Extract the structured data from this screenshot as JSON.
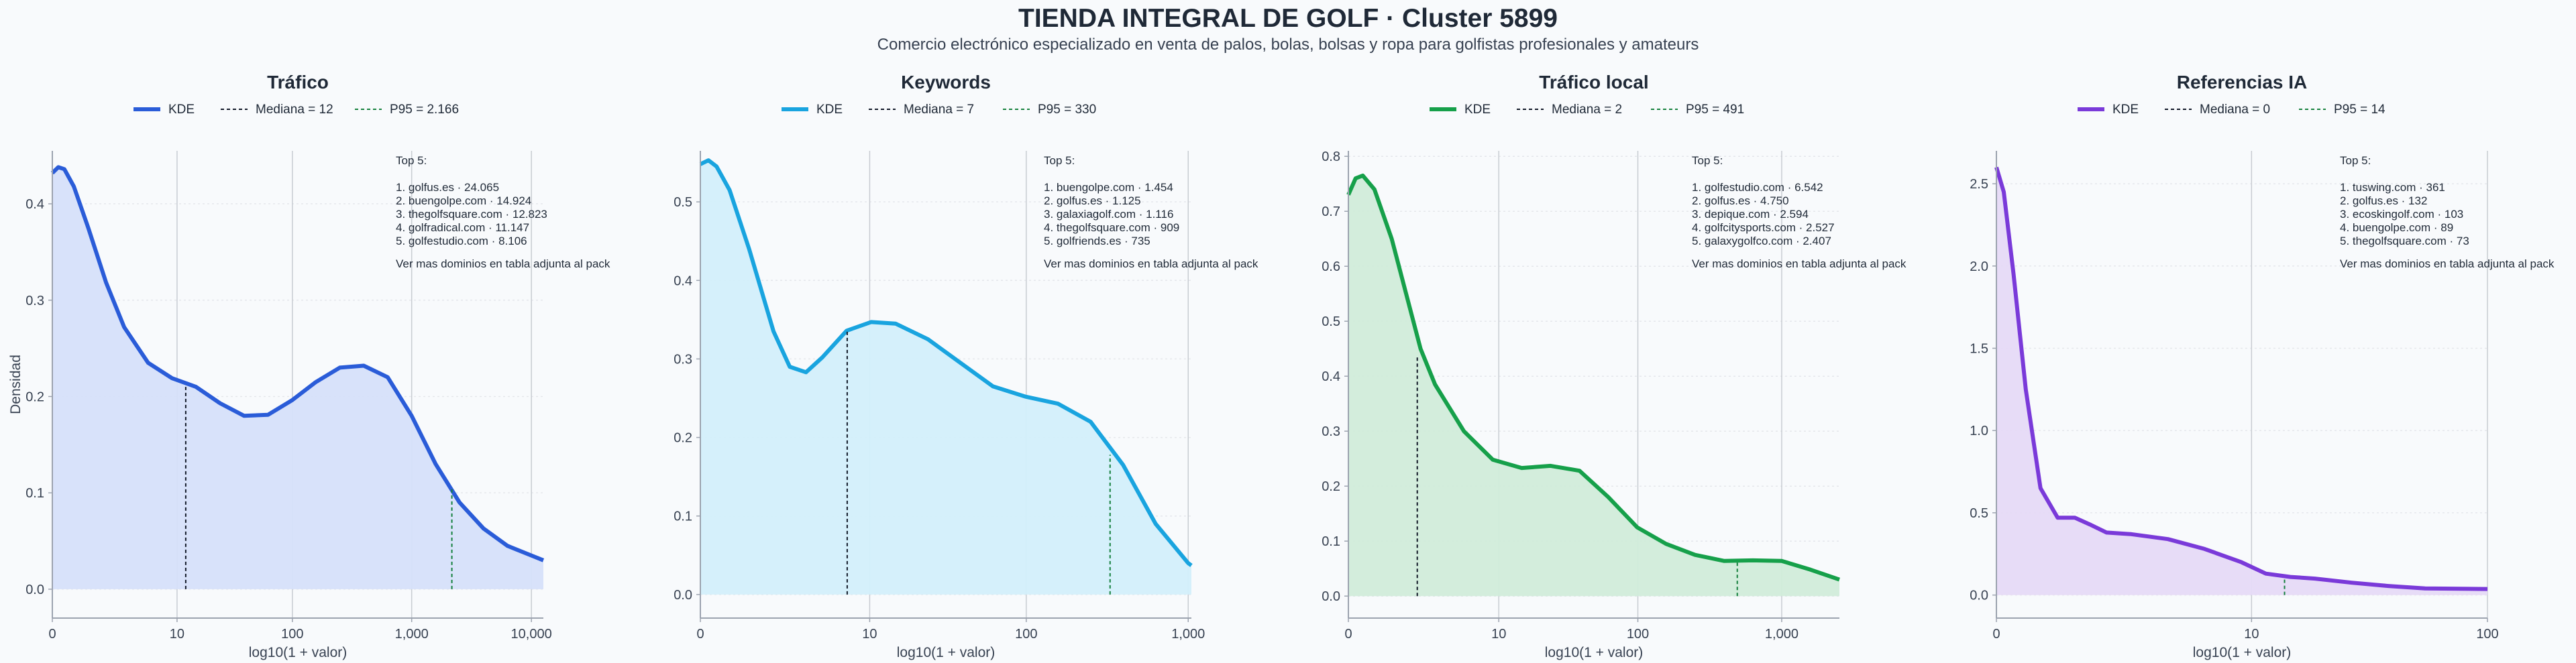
{
  "title": "TIENDA INTEGRAL DE GOLF · Cluster 5899",
  "subtitle": "Comercio electrónico especializado en venta de palos, bolas, bolsas y ropa para golfistas profesionales y amateurs",
  "chart_data": [
    {
      "type": "area",
      "title": "Tráfico",
      "xlabel": "log10(1 + valor)",
      "ylabel": "Densidad",
      "color": "#2a5cd8",
      "fill": "#d6e0fa",
      "x_ticks": [
        "0",
        "10",
        "100",
        "1,000",
        "10,000"
      ],
      "x_tick_pos": [
        0,
        1.0414,
        2.0043,
        3.0004,
        4.0
      ],
      "xlim": [
        0,
        4.1
      ],
      "y_ticks": [
        "0.0",
        "0.1",
        "0.2",
        "0.3",
        "0.4"
      ],
      "ylim": [
        -0.03,
        0.455
      ],
      "x": [
        0,
        0.05,
        0.1,
        0.18,
        0.3,
        0.45,
        0.6,
        0.8,
        1.0,
        1.2,
        1.4,
        1.6,
        1.8,
        2.0,
        2.2,
        2.4,
        2.6,
        2.8,
        3.0,
        3.2,
        3.4,
        3.6,
        3.8,
        4.0,
        4.1
      ],
      "y": [
        0.432,
        0.438,
        0.436,
        0.418,
        0.375,
        0.318,
        0.272,
        0.235,
        0.219,
        0.21,
        0.193,
        0.18,
        0.181,
        0.196,
        0.215,
        0.23,
        0.232,
        0.22,
        0.18,
        0.13,
        0.09,
        0.063,
        0.045,
        0.035,
        0.03
      ],
      "legend": [
        "KDE",
        "Mediana = 12",
        "P95 = 2.166"
      ],
      "median": 1.1139,
      "median_y": 0.21,
      "p95": 3.3359,
      "p95_y": 0.105,
      "top5_title": "Top 5:",
      "top5": [
        "1. golfus.es · 24.065",
        "2. buengolpe.com · 14.924",
        "3. thegolfsquare.com · 12.823",
        "4. golfradical.com · 11.147",
        "5. golfestudio.com · 8.106"
      ],
      "top5_note": "Ver mas dominios en tabla adjunta al pack"
    },
    {
      "type": "area",
      "title": "Keywords",
      "xlabel": "log10(1 + valor)",
      "ylabel": "",
      "color": "#19a4df",
      "fill": "#d3effb",
      "x_ticks": [
        "0",
        "10",
        "100",
        "1,000"
      ],
      "x_tick_pos": [
        0,
        1.0414,
        2.0043,
        3.0004
      ],
      "xlim": [
        0,
        3.02
      ],
      "y_ticks": [
        "0.0",
        "0.1",
        "0.2",
        "0.3",
        "0.4",
        "0.5"
      ],
      "ylim": [
        -0.03,
        0.565
      ],
      "x": [
        0,
        0.05,
        0.1,
        0.18,
        0.3,
        0.45,
        0.55,
        0.65,
        0.75,
        0.9,
        1.05,
        1.2,
        1.4,
        1.6,
        1.8,
        2.0,
        2.2,
        2.4,
        2.6,
        2.8,
        3.0,
        3.02
      ],
      "y": [
        0.548,
        0.553,
        0.545,
        0.515,
        0.44,
        0.335,
        0.29,
        0.283,
        0.302,
        0.336,
        0.347,
        0.345,
        0.325,
        0.295,
        0.265,
        0.252,
        0.243,
        0.22,
        0.165,
        0.09,
        0.04,
        0.037
      ],
      "legend": [
        "KDE",
        "Mediana = 7",
        "P95 = 330"
      ],
      "median": 0.9031,
      "median_y": 0.336,
      "p95": 2.5198,
      "p95_y": 0.178,
      "top5_title": "Top 5:",
      "top5": [
        "1. buengolpe.com · 1.454",
        "2. golfus.es · 1.125",
        "3. galaxiagolf.com · 1.116",
        "4. thegolfsquare.com · 909",
        "5. golfriends.es · 735"
      ],
      "top5_note": "Ver mas dominios en tabla adjunta al pack"
    },
    {
      "type": "area",
      "title": "Tráfico local",
      "xlabel": "log10(1 + valor)",
      "ylabel": "",
      "color": "#16a04a",
      "fill": "#d1ecda",
      "x_ticks": [
        "0",
        "10",
        "100",
        "1,000"
      ],
      "x_tick_pos": [
        0,
        1.0414,
        2.0043,
        3.0004
      ],
      "xlim": [
        0,
        3.4
      ],
      "y_ticks": [
        "0.0",
        "0.1",
        "0.2",
        "0.3",
        "0.4",
        "0.5",
        "0.6",
        "0.7",
        "0.8"
      ],
      "ylim": [
        -0.04,
        0.81
      ],
      "x": [
        0,
        0.05,
        0.1,
        0.18,
        0.3,
        0.4,
        0.5,
        0.6,
        0.8,
        1.0,
        1.2,
        1.4,
        1.6,
        1.8,
        2.0,
        2.2,
        2.4,
        2.6,
        2.8,
        3.0,
        3.2,
        3.4
      ],
      "y": [
        0.73,
        0.76,
        0.765,
        0.74,
        0.65,
        0.55,
        0.45,
        0.385,
        0.3,
        0.248,
        0.233,
        0.237,
        0.228,
        0.18,
        0.125,
        0.095,
        0.075,
        0.064,
        0.065,
        0.064,
        0.048,
        0.03
      ],
      "legend": [
        "KDE",
        "Mediana = 2",
        "P95 = 491"
      ],
      "median": 0.4771,
      "median_y": 0.438,
      "p95": 2.6928,
      "p95_y": 0.064,
      "top5_title": "Top 5:",
      "top5": [
        "1. golfestudio.com · 6.542",
        "2. golfus.es · 4.750",
        "3. depique.com · 2.594",
        "4. golfcitysports.com · 2.527",
        "5. galaxygolfco.com · 2.407"
      ],
      "top5_note": "Ver mas dominios en tabla adjunta al pack"
    },
    {
      "type": "area",
      "title": "Referencias IA",
      "xlabel": "log10(1 + valor)",
      "ylabel": "",
      "color": "#7a3ad9",
      "fill": "#e6daf7",
      "x_ticks": [
        "0",
        "10",
        "100"
      ],
      "x_tick_pos": [
        0,
        1.0414,
        2.0043
      ],
      "xlim": [
        0,
        2.0043
      ],
      "y_ticks": [
        "0.0",
        "0.5",
        "1.0",
        "1.5",
        "2.0",
        "2.5"
      ],
      "ylim": [
        -0.14,
        2.7
      ],
      "x": [
        0,
        0.03,
        0.07,
        0.12,
        0.18,
        0.25,
        0.32,
        0.38,
        0.45,
        0.55,
        0.7,
        0.85,
        1.0,
        1.1,
        1.2,
        1.3,
        1.45,
        1.6,
        1.75,
        1.9,
        2.0043
      ],
      "y": [
        2.6,
        2.45,
        1.95,
        1.25,
        0.65,
        0.47,
        0.47,
        0.43,
        0.38,
        0.37,
        0.34,
        0.28,
        0.2,
        0.13,
        0.11,
        0.1,
        0.075,
        0.055,
        0.04,
        0.038,
        0.037
      ],
      "legend": [
        "KDE",
        "Mediana = 0",
        "P95 = 14"
      ],
      "median": 0,
      "median_y": 2.6,
      "p95": 1.1761,
      "p95_y": 0.105,
      "top5_title": "Top 5:",
      "top5": [
        "1. tuswing.com · 361",
        "2. golfus.es · 132",
        "3. ecoskingolf.com · 103",
        "4. buengolpe.com · 89",
        "5. thegolfsquare.com · 73"
      ],
      "top5_note": "Ver mas dominios en tabla adjunta al pack"
    }
  ]
}
